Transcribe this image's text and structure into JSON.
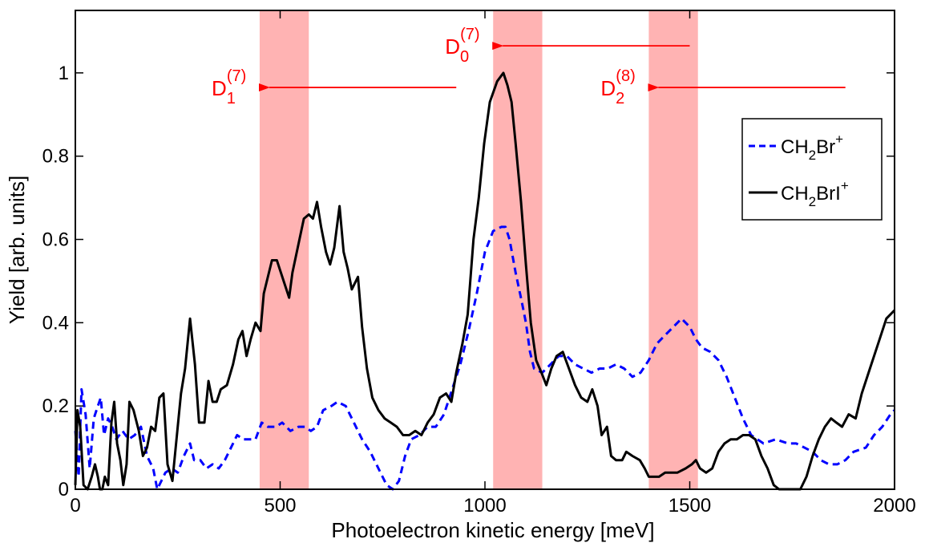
{
  "chart_data": {
    "type": "line",
    "title": "",
    "xlabel": "Photoelectron kinetic energy [meV]",
    "ylabel": "Yield [arb. units]",
    "xlim": [
      0,
      2000
    ],
    "ylim": [
      0,
      1.15
    ],
    "xticks": [
      0,
      500,
      1000,
      1500,
      2000
    ],
    "yticks": [
      0,
      0.2,
      0.4,
      0.6,
      0.8,
      1
    ],
    "xtick_labels": [
      "0",
      "500",
      "1000",
      "1500",
      "2000"
    ],
    "ytick_labels": [
      "0",
      "0.2",
      "0.4",
      "0.6",
      "0.8",
      "1"
    ],
    "grid": false,
    "legend_position": "right",
    "series": [
      {
        "name": "CH2Br+",
        "legend_main": "CH",
        "legend_sub": "2",
        "legend_rest": "Br",
        "legend_sup": "+",
        "color": "#0000ff",
        "style": "dashed",
        "points": [
          [
            0,
            0.14
          ],
          [
            8,
            0.03
          ],
          [
            15,
            0.24
          ],
          [
            25,
            0.18
          ],
          [
            35,
            0.05
          ],
          [
            45,
            0.17
          ],
          [
            55,
            0.2
          ],
          [
            62,
            0.22
          ],
          [
            70,
            0.13
          ],
          [
            80,
            0.17
          ],
          [
            90,
            0.15
          ],
          [
            100,
            0.12
          ],
          [
            115,
            0.14
          ],
          [
            130,
            0.12
          ],
          [
            145,
            0.13
          ],
          [
            160,
            0.15
          ],
          [
            175,
            0.08
          ],
          [
            190,
            0.05
          ],
          [
            200,
            0.0
          ],
          [
            210,
            0.02
          ],
          [
            220,
            0.04
          ],
          [
            235,
            0.05
          ],
          [
            250,
            0.04
          ],
          [
            265,
            0.08
          ],
          [
            280,
            0.11
          ],
          [
            290,
            0.07
          ],
          [
            305,
            0.07
          ],
          [
            320,
            0.05
          ],
          [
            335,
            0.06
          ],
          [
            350,
            0.05
          ],
          [
            365,
            0.07
          ],
          [
            380,
            0.1
          ],
          [
            395,
            0.13
          ],
          [
            410,
            0.12
          ],
          [
            425,
            0.12
          ],
          [
            440,
            0.12
          ],
          [
            455,
            0.16
          ],
          [
            470,
            0.15
          ],
          [
            490,
            0.15
          ],
          [
            505,
            0.16
          ],
          [
            525,
            0.14
          ],
          [
            545,
            0.15
          ],
          [
            560,
            0.15
          ],
          [
            575,
            0.14
          ],
          [
            590,
            0.15
          ],
          [
            605,
            0.19
          ],
          [
            625,
            0.2
          ],
          [
            640,
            0.21
          ],
          [
            660,
            0.2
          ],
          [
            680,
            0.16
          ],
          [
            700,
            0.12
          ],
          [
            720,
            0.09
          ],
          [
            740,
            0.05
          ],
          [
            760,
            0.01
          ],
          [
            775,
            0.0
          ],
          [
            790,
            0.02
          ],
          [
            805,
            0.08
          ],
          [
            820,
            0.12
          ],
          [
            840,
            0.13
          ],
          [
            860,
            0.15
          ],
          [
            880,
            0.15
          ],
          [
            900,
            0.18
          ],
          [
            920,
            0.24
          ],
          [
            940,
            0.3
          ],
          [
            960,
            0.38
          ],
          [
            980,
            0.47
          ],
          [
            1000,
            0.57
          ],
          [
            1020,
            0.62
          ],
          [
            1040,
            0.63
          ],
          [
            1050,
            0.63
          ],
          [
            1060,
            0.6
          ],
          [
            1075,
            0.52
          ],
          [
            1090,
            0.45
          ],
          [
            1100,
            0.4
          ],
          [
            1110,
            0.33
          ],
          [
            1120,
            0.29
          ],
          [
            1140,
            0.28
          ],
          [
            1160,
            0.3
          ],
          [
            1180,
            0.32
          ],
          [
            1200,
            0.32
          ],
          [
            1220,
            0.3
          ],
          [
            1240,
            0.29
          ],
          [
            1260,
            0.28
          ],
          [
            1280,
            0.29
          ],
          [
            1300,
            0.29
          ],
          [
            1320,
            0.3
          ],
          [
            1340,
            0.29
          ],
          [
            1360,
            0.27
          ],
          [
            1380,
            0.28
          ],
          [
            1400,
            0.31
          ],
          [
            1420,
            0.35
          ],
          [
            1440,
            0.37
          ],
          [
            1460,
            0.39
          ],
          [
            1480,
            0.41
          ],
          [
            1500,
            0.39
          ],
          [
            1515,
            0.36
          ],
          [
            1530,
            0.34
          ],
          [
            1550,
            0.33
          ],
          [
            1570,
            0.31
          ],
          [
            1590,
            0.27
          ],
          [
            1610,
            0.22
          ],
          [
            1630,
            0.17
          ],
          [
            1650,
            0.13
          ],
          [
            1680,
            0.11
          ],
          [
            1710,
            0.12
          ],
          [
            1740,
            0.11
          ],
          [
            1760,
            0.11
          ],
          [
            1780,
            0.1
          ],
          [
            1800,
            0.09
          ],
          [
            1820,
            0.07
          ],
          [
            1840,
            0.06
          ],
          [
            1860,
            0.06
          ],
          [
            1880,
            0.07
          ],
          [
            1900,
            0.09
          ],
          [
            1930,
            0.1
          ],
          [
            1950,
            0.13
          ],
          [
            1970,
            0.15
          ],
          [
            1990,
            0.18
          ],
          [
            2000,
            0.19
          ]
        ]
      },
      {
        "name": "CH2BrI+",
        "legend_main": "CH",
        "legend_sub": "2",
        "legend_rest": "BrI",
        "legend_sup": "+",
        "color": "#000000",
        "style": "solid",
        "points": [
          [
            0,
            0.01
          ],
          [
            5,
            0.19
          ],
          [
            12,
            0.15
          ],
          [
            20,
            0.01
          ],
          [
            30,
            0.0
          ],
          [
            40,
            0.03
          ],
          [
            48,
            0.06
          ],
          [
            55,
            0.03
          ],
          [
            60,
            0.0
          ],
          [
            66,
            0.0
          ],
          [
            72,
            0.03
          ],
          [
            80,
            0.01
          ],
          [
            88,
            0.16
          ],
          [
            95,
            0.21
          ],
          [
            102,
            0.11
          ],
          [
            110,
            0.07
          ],
          [
            117,
            0.01
          ],
          [
            125,
            0.06
          ],
          [
            132,
            0.21
          ],
          [
            142,
            0.19
          ],
          [
            155,
            0.14
          ],
          [
            165,
            0.08
          ],
          [
            175,
            0.1
          ],
          [
            185,
            0.15
          ],
          [
            195,
            0.14
          ],
          [
            205,
            0.22
          ],
          [
            215,
            0.23
          ],
          [
            225,
            0.06
          ],
          [
            237,
            0.02
          ],
          [
            248,
            0.13
          ],
          [
            258,
            0.23
          ],
          [
            268,
            0.29
          ],
          [
            280,
            0.41
          ],
          [
            292,
            0.3
          ],
          [
            302,
            0.16
          ],
          [
            315,
            0.16
          ],
          [
            325,
            0.26
          ],
          [
            335,
            0.21
          ],
          [
            345,
            0.21
          ],
          [
            355,
            0.24
          ],
          [
            370,
            0.25
          ],
          [
            385,
            0.3
          ],
          [
            398,
            0.36
          ],
          [
            408,
            0.38
          ],
          [
            418,
            0.32
          ],
          [
            428,
            0.36
          ],
          [
            440,
            0.4
          ],
          [
            452,
            0.38
          ],
          [
            460,
            0.47
          ],
          [
            470,
            0.51
          ],
          [
            480,
            0.55
          ],
          [
            492,
            0.55
          ],
          [
            502,
            0.52
          ],
          [
            512,
            0.49
          ],
          [
            522,
            0.46
          ],
          [
            530,
            0.52
          ],
          [
            545,
            0.59
          ],
          [
            558,
            0.65
          ],
          [
            570,
            0.66
          ],
          [
            580,
            0.65
          ],
          [
            590,
            0.69
          ],
          [
            600,
            0.63
          ],
          [
            612,
            0.57
          ],
          [
            622,
            0.54
          ],
          [
            632,
            0.58
          ],
          [
            645,
            0.68
          ],
          [
            655,
            0.57
          ],
          [
            665,
            0.53
          ],
          [
            675,
            0.48
          ],
          [
            690,
            0.51
          ],
          [
            700,
            0.39
          ],
          [
            712,
            0.29
          ],
          [
            725,
            0.22
          ],
          [
            740,
            0.19
          ],
          [
            755,
            0.17
          ],
          [
            770,
            0.16
          ],
          [
            785,
            0.15
          ],
          [
            800,
            0.13
          ],
          [
            815,
            0.13
          ],
          [
            830,
            0.14
          ],
          [
            845,
            0.13
          ],
          [
            860,
            0.16
          ],
          [
            875,
            0.18
          ],
          [
            890,
            0.22
          ],
          [
            905,
            0.23
          ],
          [
            918,
            0.21
          ],
          [
            930,
            0.28
          ],
          [
            945,
            0.35
          ],
          [
            958,
            0.42
          ],
          [
            972,
            0.6
          ],
          [
            985,
            0.7
          ],
          [
            998,
            0.83
          ],
          [
            1012,
            0.93
          ],
          [
            1030,
            0.98
          ],
          [
            1045,
            1.0
          ],
          [
            1055,
            0.97
          ],
          [
            1065,
            0.93
          ],
          [
            1075,
            0.83
          ],
          [
            1088,
            0.69
          ],
          [
            1100,
            0.54
          ],
          [
            1112,
            0.4
          ],
          [
            1125,
            0.31
          ],
          [
            1138,
            0.28
          ],
          [
            1150,
            0.25
          ],
          [
            1162,
            0.29
          ],
          [
            1175,
            0.32
          ],
          [
            1190,
            0.33
          ],
          [
            1205,
            0.29
          ],
          [
            1220,
            0.25
          ],
          [
            1235,
            0.22
          ],
          [
            1250,
            0.21
          ],
          [
            1262,
            0.24
          ],
          [
            1275,
            0.2
          ],
          [
            1285,
            0.13
          ],
          [
            1298,
            0.15
          ],
          [
            1308,
            0.08
          ],
          [
            1320,
            0.07
          ],
          [
            1335,
            0.07
          ],
          [
            1345,
            0.09
          ],
          [
            1360,
            0.08
          ],
          [
            1378,
            0.07
          ],
          [
            1390,
            0.05
          ],
          [
            1400,
            0.03
          ],
          [
            1412,
            0.03
          ],
          [
            1425,
            0.03
          ],
          [
            1440,
            0.04
          ],
          [
            1455,
            0.04
          ],
          [
            1470,
            0.04
          ],
          [
            1490,
            0.05
          ],
          [
            1505,
            0.06
          ],
          [
            1515,
            0.07
          ],
          [
            1525,
            0.05
          ],
          [
            1540,
            0.04
          ],
          [
            1555,
            0.05
          ],
          [
            1570,
            0.09
          ],
          [
            1585,
            0.11
          ],
          [
            1600,
            0.12
          ],
          [
            1615,
            0.12
          ],
          [
            1630,
            0.13
          ],
          [
            1645,
            0.13
          ],
          [
            1660,
            0.12
          ],
          [
            1675,
            0.08
          ],
          [
            1690,
            0.05
          ],
          [
            1705,
            0.01
          ],
          [
            1718,
            0.0
          ],
          [
            1735,
            0.0
          ],
          [
            1755,
            0.0
          ],
          [
            1770,
            0.0
          ],
          [
            1785,
            0.03
          ],
          [
            1800,
            0.08
          ],
          [
            1815,
            0.12
          ],
          [
            1830,
            0.15
          ],
          [
            1845,
            0.17
          ],
          [
            1858,
            0.16
          ],
          [
            1872,
            0.15
          ],
          [
            1888,
            0.18
          ],
          [
            1905,
            0.17
          ],
          [
            1920,
            0.23
          ],
          [
            1940,
            0.29
          ],
          [
            1960,
            0.35
          ],
          [
            1980,
            0.41
          ],
          [
            2000,
            0.43
          ]
        ]
      }
    ],
    "highlight_bands": [
      {
        "x0": 450,
        "x1": 570,
        "color": "#ffb3b3"
      },
      {
        "x0": 1020,
        "x1": 1140,
        "color": "#ffb3b3"
      },
      {
        "x0": 1400,
        "x1": 1520,
        "color": "#ffb3b3"
      }
    ],
    "annotations": [
      {
        "main": "D",
        "sub": "1",
        "sup": "(7)",
        "arrow_from_x": 930,
        "arrow_to_x": 450,
        "arrow_y": 0.965,
        "color": "#ff0000"
      },
      {
        "main": "D",
        "sub": "0",
        "sup": "(7)",
        "arrow_from_x": 1500,
        "arrow_to_x": 1020,
        "arrow_y": 1.065,
        "color": "#ff0000"
      },
      {
        "main": "D",
        "sub": "2",
        "sup": "(8)",
        "arrow_from_x": 1880,
        "arrow_to_x": 1400,
        "arrow_y": 0.965,
        "color": "#ff0000"
      }
    ]
  }
}
